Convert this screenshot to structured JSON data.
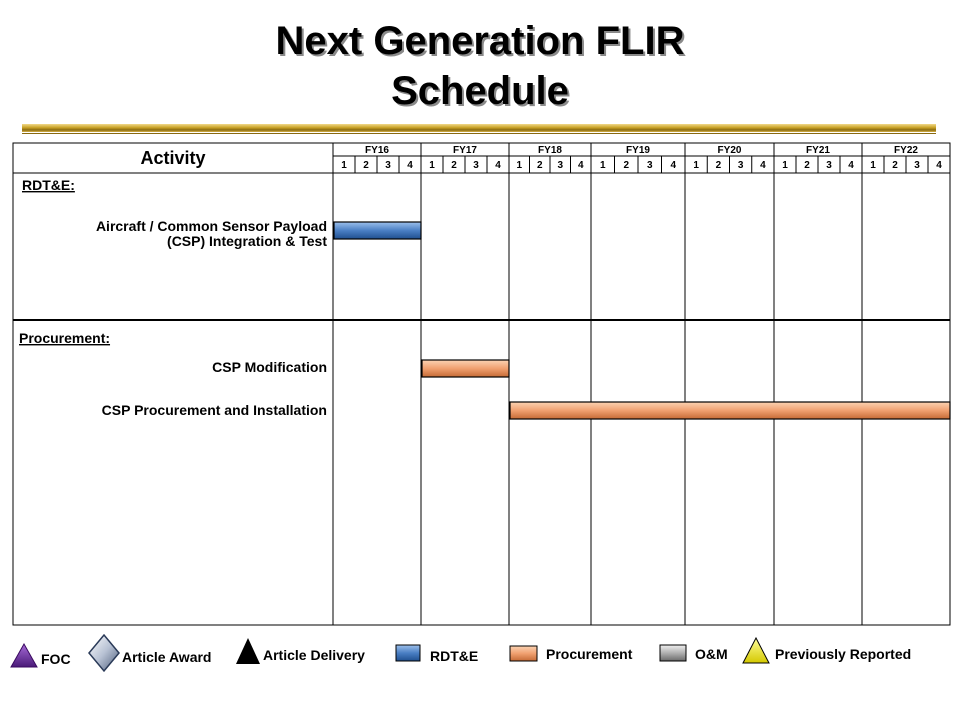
{
  "title_line1": "Next Generation FLIR",
  "title_line2": "Schedule",
  "activity_header": "Activity",
  "fiscal_years": [
    "FY16",
    "FY17",
    "FY18",
    "FY19",
    "FY20",
    "FY21",
    "FY22"
  ],
  "quarters": [
    "1",
    "2",
    "3",
    "4"
  ],
  "sections": [
    {
      "heading": "RDT&E:",
      "rows": [
        {
          "label_lines": [
            "Aircraft / Common Sensor Payload",
            "(CSP) Integration & Test"
          ],
          "type": "RDT&E",
          "start": "FY16 Q1",
          "end": "FY16 Q4"
        }
      ]
    },
    {
      "heading": "Procurement:",
      "rows": [
        {
          "label_lines": [
            "CSP Modification"
          ],
          "type": "Procurement",
          "start": "FY17 Q1",
          "end": "FY17 Q4"
        },
        {
          "label_lines": [
            "CSP Procurement and Installation"
          ],
          "type": "Procurement",
          "start": "FY18 Q1",
          "end": "FY22 Q4"
        }
      ]
    }
  ],
  "colors": {
    "rdte": "#4a7fc4",
    "procurement": "#f0a070",
    "om": "#b0b0b0",
    "foc": "#7030a0",
    "previously_reported": "#ffff00"
  },
  "legend": [
    {
      "label": "FOC",
      "icon": "purple-triangle-icon"
    },
    {
      "label": "Article Award",
      "icon": "silver-diamond-icon"
    },
    {
      "label": "Article Delivery",
      "icon": "black-triangle-icon"
    },
    {
      "label": "RDT&E",
      "icon": "blue-bar-icon"
    },
    {
      "label": "Procurement",
      "icon": "orange-bar-icon"
    },
    {
      "label": "O&M",
      "icon": "gray-bar-icon"
    },
    {
      "label": "Previously Reported",
      "icon": "yellow-triangle-icon"
    }
  ]
}
